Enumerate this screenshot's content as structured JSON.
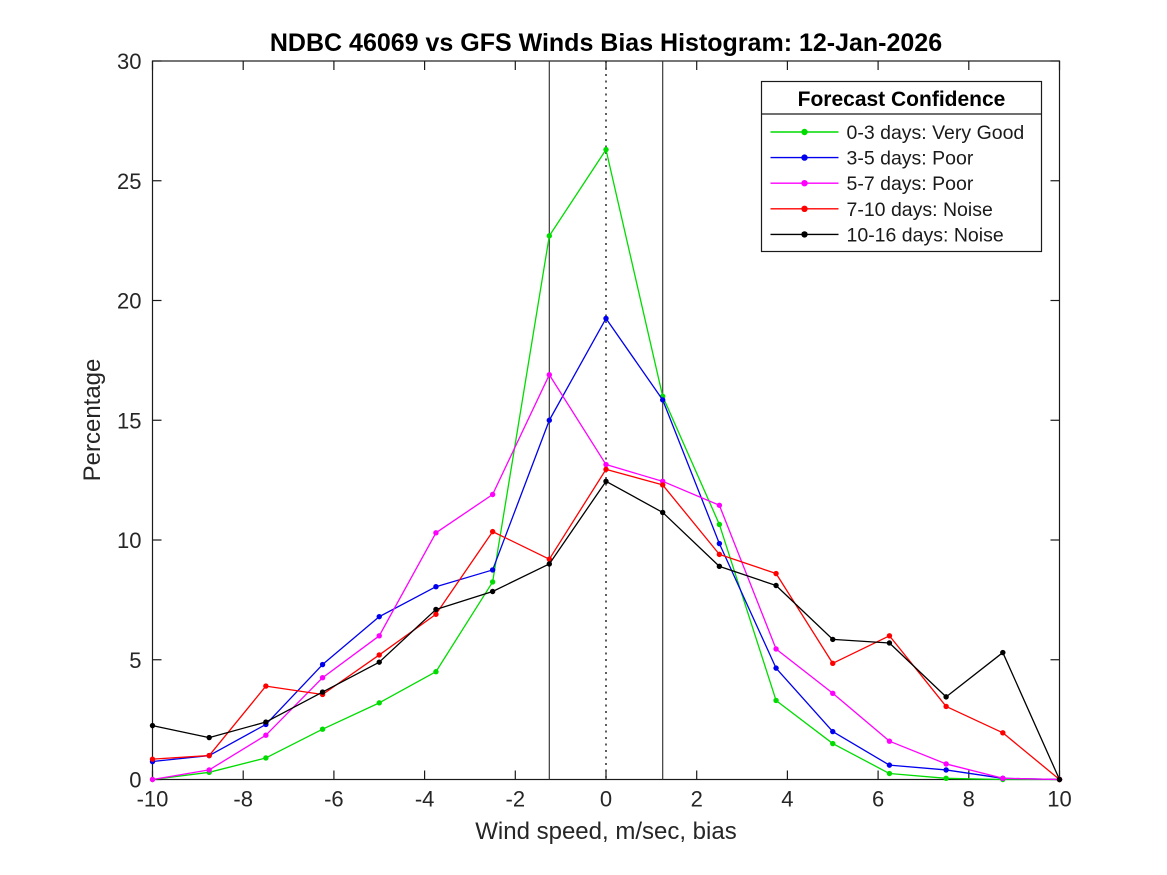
{
  "chart_data": {
    "type": "line",
    "title": "NDBC 46069 vs GFS Winds Bias Histogram: 12-Jan-2026",
    "xlabel": "Wind speed, m/sec, bias",
    "ylabel": "Percentage",
    "xlim": [
      -10,
      10
    ],
    "ylim": [
      0,
      30
    ],
    "x_ticks": [
      -10,
      -8,
      -6,
      -4,
      -2,
      0,
      2,
      4,
      6,
      8,
      10
    ],
    "y_ticks": [
      0,
      5,
      10,
      15,
      20,
      25,
      30
    ],
    "grid": false,
    "marker": "dot",
    "x": [
      -10,
      -8.75,
      -7.5,
      -6.25,
      -5,
      -3.75,
      -2.5,
      -1.25,
      0,
      1.25,
      2.5,
      3.75,
      5,
      6.25,
      7.5,
      8.75,
      10
    ],
    "series": [
      {
        "name": "0-3 days: Very Good",
        "color": "#00dc00",
        "values": [
          0,
          0.3,
          0.9,
          2.1,
          3.2,
          4.5,
          8.25,
          22.7,
          26.3,
          16.0,
          10.65,
          3.3,
          1.5,
          0.25,
          0.05,
          0,
          0
        ]
      },
      {
        "name": "3-5 days: Poor",
        "color": "#0000ee",
        "values": [
          0.75,
          1.0,
          2.3,
          4.8,
          6.8,
          8.05,
          8.75,
          15.0,
          19.25,
          15.85,
          9.85,
          4.65,
          2.0,
          0.6,
          0.4,
          0.05,
          0
        ]
      },
      {
        "name": "5-7 days: Poor",
        "color": "#ff00ff",
        "values": [
          0,
          0.4,
          1.85,
          4.25,
          6.0,
          10.3,
          11.9,
          16.9,
          13.15,
          12.45,
          11.45,
          5.45,
          3.6,
          1.6,
          0.65,
          0.05,
          0
        ]
      },
      {
        "name": "7-10 days: Noise",
        "color": "#ff0000",
        "values": [
          0.85,
          1.0,
          3.9,
          3.55,
          5.2,
          6.9,
          10.35,
          9.2,
          12.95,
          12.3,
          9.4,
          8.6,
          4.85,
          6.0,
          3.05,
          1.95,
          0
        ]
      },
      {
        "name": "10-16 days: Noise",
        "color": "#000000",
        "values": [
          2.25,
          1.75,
          2.4,
          3.65,
          4.9,
          7.1,
          7.85,
          9.0,
          12.45,
          11.15,
          8.9,
          8.1,
          5.85,
          5.7,
          3.45,
          5.3,
          0
        ]
      }
    ],
    "reference_lines": [
      {
        "name": "noise-threshold-left",
        "x": -1.25,
        "style": "solid",
        "color": "#3a3a3a"
      },
      {
        "name": "zero-bias-line",
        "x": 0,
        "style": "dotted",
        "color": "#1a1a1a"
      },
      {
        "name": "noise-threshold-right",
        "x": 1.25,
        "style": "solid",
        "color": "#3a3a3a"
      }
    ],
    "legend": {
      "title": "Forecast Confidence",
      "position": "top-right"
    }
  }
}
